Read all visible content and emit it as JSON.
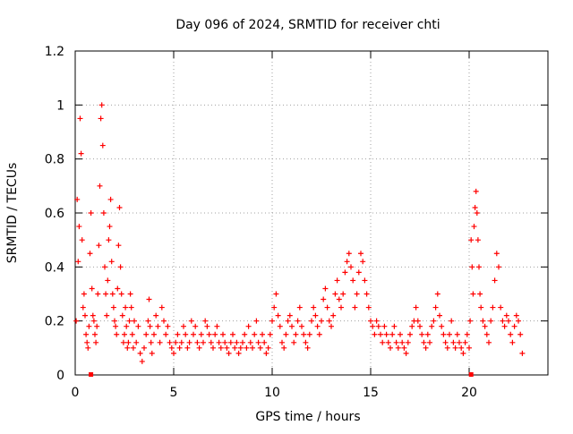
{
  "chart_data": {
    "type": "scatter",
    "title": "Day 096 of 2024, SRMTID for receiver chti",
    "xlabel": "GPS time / hours",
    "ylabel": "SRMTID / TECUs",
    "xlim": [
      0,
      24
    ],
    "ylim": [
      0,
      1.2
    ],
    "x_ticks": [
      0,
      5,
      10,
      15,
      20
    ],
    "x_tick_labels": [
      "0",
      "5",
      "10",
      "15",
      "20"
    ],
    "y_ticks": [
      0,
      0.2,
      0.4,
      0.6,
      0.8,
      1.0,
      1.2
    ],
    "y_tick_labels": [
      "0",
      "0.2",
      "0.4",
      "0.6",
      "0.8",
      "1",
      "1.2"
    ],
    "grid": true,
    "marker": "+",
    "series_color": "#ff0000",
    "series": [
      {
        "name": "SRMTID",
        "x": [
          0.05,
          0.1,
          0.15,
          0.2,
          0.25,
          0.3,
          0.35,
          0.4,
          0.45,
          0.5,
          0.55,
          0.6,
          0.65,
          0.7,
          0.75,
          0.8,
          0.85,
          0.9,
          0.95,
          1.0,
          1.05,
          1.1,
          1.15,
          1.2,
          1.25,
          1.3,
          1.35,
          1.4,
          1.45,
          1.5,
          1.55,
          1.6,
          1.65,
          1.7,
          1.75,
          1.8,
          1.85,
          1.9,
          1.95,
          2.0,
          2.05,
          2.1,
          2.15,
          2.2,
          2.25,
          2.3,
          2.35,
          2.4,
          2.45,
          2.5,
          2.55,
          2.6,
          2.65,
          2.7,
          2.75,
          2.8,
          2.85,
          2.9,
          2.95,
          3.0,
          3.1,
          3.2,
          3.3,
          3.4,
          3.5,
          3.6,
          3.7,
          3.75,
          3.8,
          3.85,
          3.9,
          4.0,
          4.1,
          4.2,
          4.3,
          4.4,
          4.5,
          4.6,
          4.7,
          4.8,
          4.9,
          5.0,
          5.1,
          5.2,
          5.3,
          5.4,
          5.5,
          5.6,
          5.7,
          5.8,
          5.9,
          6.0,
          6.1,
          6.2,
          6.3,
          6.4,
          6.5,
          6.6,
          6.7,
          6.8,
          6.9,
          7.0,
          7.1,
          7.2,
          7.3,
          7.4,
          7.5,
          7.6,
          7.7,
          7.8,
          7.9,
          8.0,
          8.1,
          8.2,
          8.3,
          8.4,
          8.5,
          8.6,
          8.7,
          8.8,
          8.9,
          9.0,
          9.1,
          9.2,
          9.3,
          9.4,
          9.5,
          9.6,
          9.7,
          9.8,
          9.9,
          10.0,
          10.1,
          10.2,
          10.3,
          10.4,
          10.5,
          10.6,
          10.7,
          10.8,
          10.9,
          11.0,
          11.1,
          11.2,
          11.3,
          11.4,
          11.5,
          11.6,
          11.7,
          11.8,
          11.9,
          12.0,
          12.1,
          12.2,
          12.3,
          12.4,
          12.5,
          12.6,
          12.7,
          12.8,
          12.9,
          13.0,
          13.1,
          13.2,
          13.3,
          13.4,
          13.5,
          13.6,
          13.7,
          13.8,
          13.9,
          14.0,
          14.1,
          14.2,
          14.3,
          14.4,
          14.5,
          14.6,
          14.7,
          14.8,
          14.9,
          15.0,
          15.1,
          15.2,
          15.3,
          15.4,
          15.5,
          15.6,
          15.7,
          15.8,
          15.9,
          16.0,
          16.1,
          16.2,
          16.3,
          16.4,
          16.5,
          16.6,
          16.7,
          16.8,
          16.9,
          17.0,
          17.1,
          17.2,
          17.3,
          17.4,
          17.5,
          17.6,
          17.7,
          17.8,
          17.9,
          18.0,
          18.1,
          18.2,
          18.3,
          18.4,
          18.5,
          18.6,
          18.7,
          18.8,
          18.9,
          19.0,
          19.1,
          19.2,
          19.3,
          19.4,
          19.5,
          19.6,
          19.7,
          19.8,
          19.9,
          20.0,
          20.05,
          20.1,
          20.15,
          20.2,
          20.25,
          20.3,
          20.35,
          20.4,
          20.45,
          20.5,
          20.55,
          20.6,
          20.7,
          20.8,
          20.9,
          21.0,
          21.1,
          21.2,
          21.3,
          21.4,
          21.5,
          21.6,
          21.7,
          21.8,
          21.9,
          22.0,
          22.1,
          22.2,
          22.3,
          22.4,
          22.5,
          22.6,
          22.7
        ],
        "y": [
          0.2,
          0.65,
          0.42,
          0.55,
          0.95,
          0.82,
          0.5,
          0.25,
          0.3,
          0.22,
          0.15,
          0.12,
          0.1,
          0.18,
          0.45,
          0.6,
          0.32,
          0.22,
          0.2,
          0.15,
          0.12,
          0.18,
          0.3,
          0.48,
          0.7,
          0.95,
          1.0,
          0.85,
          0.6,
          0.4,
          0.3,
          0.22,
          0.35,
          0.5,
          0.55,
          0.65,
          0.42,
          0.3,
          0.25,
          0.2,
          0.18,
          0.15,
          0.32,
          0.48,
          0.62,
          0.4,
          0.3,
          0.22,
          0.12,
          0.15,
          0.25,
          0.18,
          0.1,
          0.12,
          0.2,
          0.3,
          0.25,
          0.15,
          0.1,
          0.2,
          0.12,
          0.18,
          0.08,
          0.05,
          0.1,
          0.15,
          0.2,
          0.28,
          0.18,
          0.12,
          0.08,
          0.15,
          0.22,
          0.18,
          0.12,
          0.25,
          0.2,
          0.15,
          0.18,
          0.12,
          0.1,
          0.08,
          0.12,
          0.15,
          0.1,
          0.12,
          0.18,
          0.15,
          0.1,
          0.12,
          0.2,
          0.15,
          0.18,
          0.12,
          0.1,
          0.15,
          0.12,
          0.2,
          0.18,
          0.15,
          0.12,
          0.1,
          0.15,
          0.18,
          0.12,
          0.1,
          0.15,
          0.12,
          0.1,
          0.08,
          0.12,
          0.15,
          0.1,
          0.12,
          0.08,
          0.1,
          0.12,
          0.15,
          0.1,
          0.18,
          0.12,
          0.1,
          0.15,
          0.2,
          0.12,
          0.1,
          0.15,
          0.12,
          0.08,
          0.1,
          0.15,
          0.2,
          0.25,
          0.3,
          0.22,
          0.18,
          0.12,
          0.1,
          0.15,
          0.2,
          0.22,
          0.18,
          0.12,
          0.15,
          0.2,
          0.25,
          0.18,
          0.15,
          0.12,
          0.1,
          0.15,
          0.2,
          0.25,
          0.22,
          0.18,
          0.15,
          0.2,
          0.28,
          0.32,
          0.25,
          0.2,
          0.18,
          0.22,
          0.3,
          0.35,
          0.28,
          0.25,
          0.3,
          0.38,
          0.42,
          0.45,
          0.4,
          0.35,
          0.25,
          0.3,
          0.38,
          0.45,
          0.42,
          0.35,
          0.3,
          0.25,
          0.2,
          0.18,
          0.15,
          0.2,
          0.18,
          0.15,
          0.12,
          0.18,
          0.15,
          0.12,
          0.1,
          0.15,
          0.18,
          0.12,
          0.1,
          0.15,
          0.12,
          0.1,
          0.08,
          0.12,
          0.15,
          0.18,
          0.2,
          0.25,
          0.2,
          0.18,
          0.15,
          0.12,
          0.1,
          0.15,
          0.12,
          0.18,
          0.2,
          0.25,
          0.3,
          0.22,
          0.18,
          0.15,
          0.12,
          0.1,
          0.15,
          0.2,
          0.12,
          0.1,
          0.15,
          0.12,
          0.1,
          0.08,
          0.12,
          0.15,
          0.1,
          0.2,
          0.5,
          0.4,
          0.3,
          0.55,
          0.62,
          0.68,
          0.6,
          0.5,
          0.4,
          0.3,
          0.25,
          0.2,
          0.18,
          0.15,
          0.12,
          0.2,
          0.25,
          0.35,
          0.45,
          0.4,
          0.25,
          0.2,
          0.18,
          0.22,
          0.2,
          0.15,
          0.12,
          0.18,
          0.22,
          0.2,
          0.15,
          0.08
        ]
      }
    ],
    "zero_markers_x": [
      0.8,
      20.1
    ]
  }
}
